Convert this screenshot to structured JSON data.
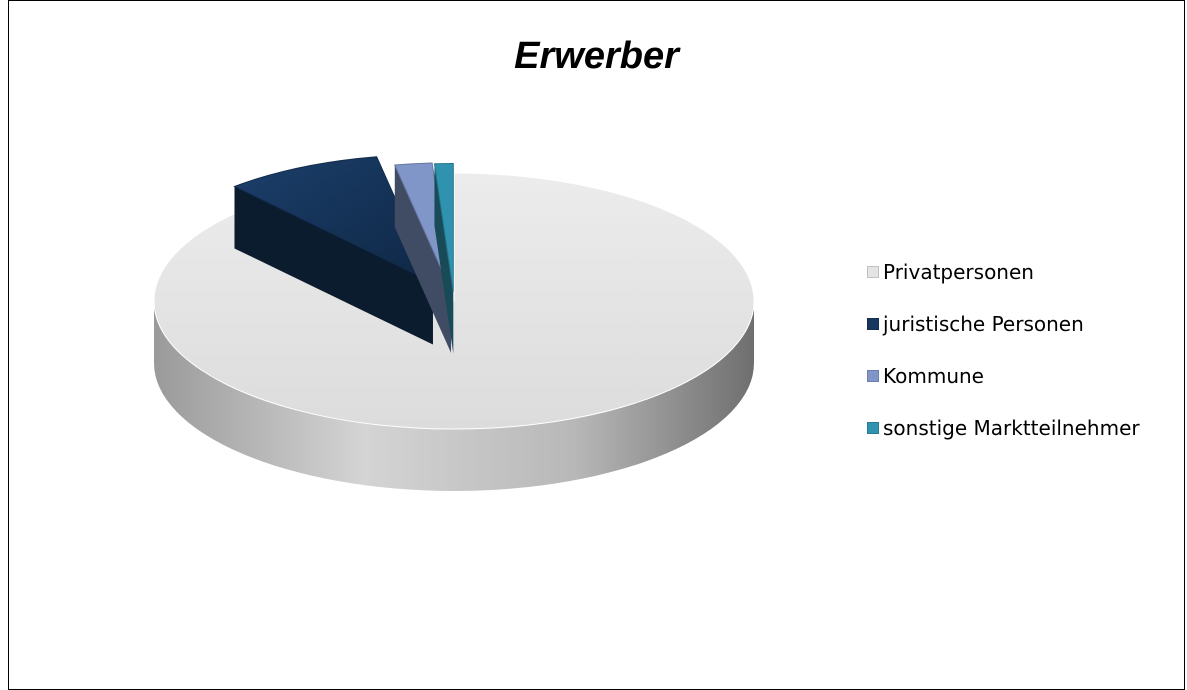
{
  "chart_data": {
    "type": "pie",
    "title": "Erwerber",
    "categories": [
      "Privatpersonen",
      "juristische  Personen",
      "Kommune",
      "sonstige Marktteilnehmer"
    ],
    "values": [
      88.5,
      8.5,
      2.0,
      1.0
    ],
    "colors": [
      "#e4e4e4",
      "#17375e",
      "#8096c8",
      "#2f93b0"
    ],
    "style": "3d-exploded",
    "legend_position": "right"
  }
}
